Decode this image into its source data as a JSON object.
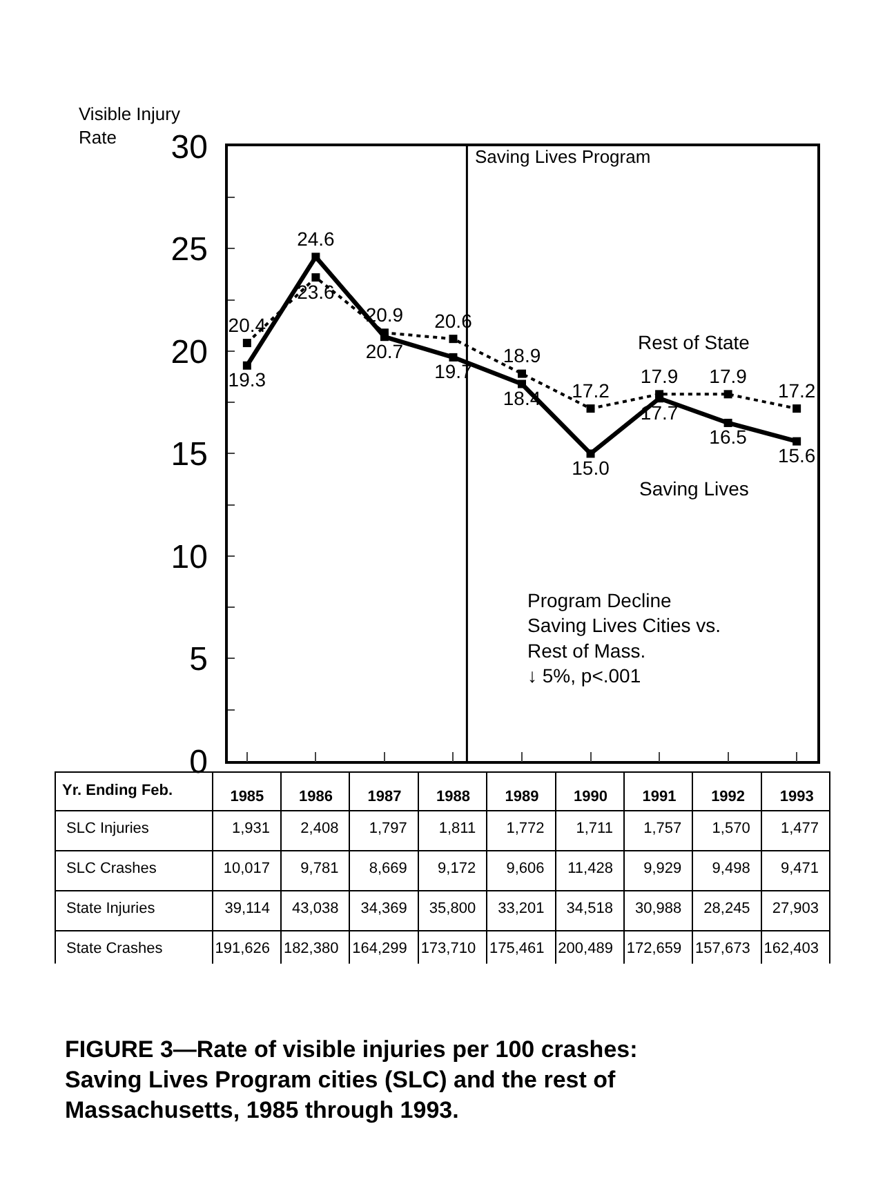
{
  "chart_data": [
    {
      "type": "line",
      "title": "FIGURE 3—Rate of visible injuries per 100 crashes: Saving Lives Program cities (SLC) and the rest of Massachusetts, 1985 through 1993.",
      "ylabel": "Visible Injury Rate",
      "xlabel": "Yr. Ending Feb.",
      "x": [
        1985,
        1986,
        1987,
        1988,
        1989,
        1990,
        1991,
        1992,
        1993
      ],
      "xlim": [
        1984.72,
        1993.3
      ],
      "xticks": [
        1985,
        1986,
        1987,
        1988,
        1989,
        1990,
        1991,
        1992,
        1993
      ],
      "ylim": [
        0,
        30
      ],
      "yticks": [
        0,
        {
          "value": 2.5,
          "label": null
        },
        5,
        {
          "value": 7.5,
          "label": null
        },
        10,
        {
          "value": 12.5,
          "label": null
        },
        15,
        {
          "value": 17.5,
          "label": null
        },
        20,
        {
          "value": 22.5,
          "label": null
        },
        25,
        {
          "value": 27.5,
          "label": null
        },
        30
      ],
      "legend": false,
      "marker": "square",
      "series": [
        {
          "name": "Rest of State",
          "color": "#000000",
          "line_style": "dotted",
          "values": [
            20.4,
            23.6,
            20.9,
            20.6,
            18.9,
            17.2,
            17.9,
            17.9,
            17.2
          ],
          "value_labels": [
            "20.4",
            "23.6",
            "20.9",
            "20.6",
            "18.9",
            "17.2",
            "17.9",
            "17.9",
            "17.2"
          ]
        },
        {
          "name": "Saving Lives",
          "color": "#000000",
          "line_style": "solid",
          "values": [
            19.3,
            24.6,
            20.7,
            19.7,
            18.4,
            15.0,
            17.7,
            16.5,
            15.6
          ],
          "value_labels": [
            "19.3",
            "24.6",
            "20.7",
            "19.7",
            "18.4",
            "15.0",
            "17.7",
            "16.5",
            "15.6"
          ]
        }
      ],
      "ref_lines": [
        {
          "axis": "x",
          "value": 1988.2,
          "label": "Saving Lives Program",
          "color": "#000000"
        }
      ],
      "annotations": [
        "Program Decline\nSaving Lives Cities vs.\nRest of Mass.\n↓ 5%, p<.001"
      ]
    },
    {
      "type": "other",
      "annotations": [
        "SLC Injuries",
        "1,931",
        "2,408",
        "1,797",
        "1,811",
        "1,772",
        "1,711",
        "1,757",
        "1,570",
        "1,477",
        "SLC Crashes",
        "10,017",
        "9,781",
        "8,669",
        "9,172",
        "9,606",
        "11,428",
        "9,929",
        "9,498",
        "9,471",
        "State Injuries",
        "39,114",
        "43,038",
        "34,369",
        "35,800",
        "33,201",
        "34,518",
        "30,988",
        "28,245",
        "27,903",
        "State Crashes",
        "191,626",
        "182,380",
        "164,299",
        "173,710",
        "175,461",
        "200,489",
        "172,659",
        "157,673",
        "162,403"
      ]
    }
  ]
}
